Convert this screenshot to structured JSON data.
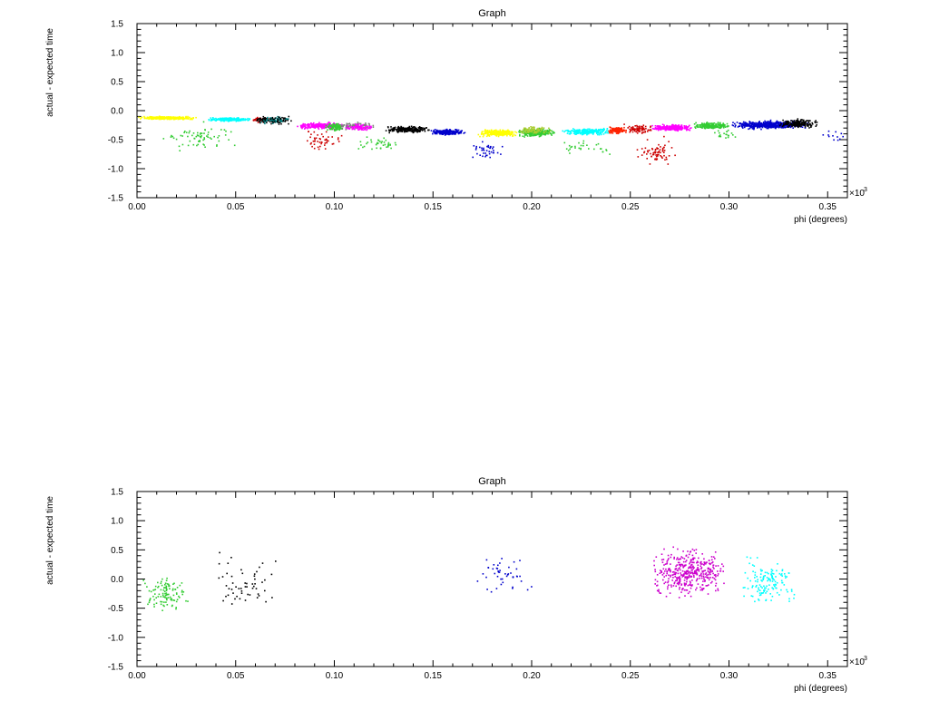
{
  "chart_data": [
    {
      "type": "scatter",
      "title": "Graph",
      "xlabel": "phi (degrees)",
      "ylabel": "actual - expected time",
      "x_multiplier": "×10",
      "x_multiplier_exponent": "3",
      "xlim": [
        0.0,
        0.36
      ],
      "ylim": [
        -1.5,
        1.5
      ],
      "x_ticks": [
        0.0,
        0.05,
        0.1,
        0.15,
        0.2,
        0.25,
        0.3,
        0.35
      ],
      "x_tick_labels": [
        "0.00",
        "0.05",
        "0.10",
        "0.15",
        "0.20",
        "0.25",
        "0.30",
        "0.35"
      ],
      "y_ticks": [
        -1.5,
        -1.0,
        -0.5,
        0.0,
        0.5,
        1.0,
        1.5
      ],
      "y_tick_labels": [
        "-1.5",
        "-1.0",
        "-0.5",
        "0.0",
        "0.5",
        "1.0",
        "1.5"
      ],
      "grid": false,
      "legend": "none",
      "clusters": [
        {
          "color": "#ffff00",
          "x": [
            0.0,
            0.03
          ],
          "y": [
            -0.15,
            -0.08
          ],
          "n": 320
        },
        {
          "color": "#33cc33",
          "x": [
            0.01,
            0.05
          ],
          "y": [
            -0.7,
            -0.15
          ],
          "n": 70
        },
        {
          "color": "#00ffff",
          "x": [
            0.036,
            0.058
          ],
          "y": [
            -0.18,
            -0.1
          ],
          "n": 240
        },
        {
          "color": "#cc0000",
          "x": [
            0.058,
            0.067
          ],
          "y": [
            -0.2,
            -0.1
          ],
          "n": 60
        },
        {
          "color": "#008080",
          "x": [
            0.06,
            0.077
          ],
          "y": [
            -0.22,
            -0.08
          ],
          "n": 90
        },
        {
          "color": "#000000",
          "x": [
            0.058,
            0.078
          ],
          "y": [
            -0.25,
            -0.05
          ],
          "n": 60
        },
        {
          "color": "#ff00ff",
          "x": [
            0.08,
            0.105
          ],
          "y": [
            -0.32,
            -0.18
          ],
          "n": 260
        },
        {
          "color": "#cc0000",
          "x": [
            0.08,
            0.105
          ],
          "y": [
            -0.7,
            -0.3
          ],
          "n": 50
        },
        {
          "color": "#33cc33",
          "x": [
            0.095,
            0.105
          ],
          "y": [
            -0.35,
            -0.18
          ],
          "n": 80
        },
        {
          "color": "#808080",
          "x": [
            0.1,
            0.12
          ],
          "y": [
            -0.32,
            -0.18
          ],
          "n": 90
        },
        {
          "color": "#ff00ff",
          "x": [
            0.105,
            0.12
          ],
          "y": [
            -0.35,
            -0.2
          ],
          "n": 80
        },
        {
          "color": "#33cc33",
          "x": [
            0.11,
            0.135
          ],
          "y": [
            -0.7,
            -0.4
          ],
          "n": 40
        },
        {
          "color": "#000000",
          "x": [
            0.125,
            0.148
          ],
          "y": [
            -0.38,
            -0.25
          ],
          "n": 250
        },
        {
          "color": "#0000cc",
          "x": [
            0.148,
            0.166
          ],
          "y": [
            -0.42,
            -0.3
          ],
          "n": 230
        },
        {
          "color": "#0000cc",
          "x": [
            0.168,
            0.185
          ],
          "y": [
            -0.9,
            -0.4
          ],
          "n": 40
        },
        {
          "color": "#ffff00",
          "x": [
            0.172,
            0.193
          ],
          "y": [
            -0.45,
            -0.3
          ],
          "n": 260
        },
        {
          "color": "#33cc33",
          "x": [
            0.192,
            0.212
          ],
          "y": [
            -0.45,
            -0.28
          ],
          "n": 240
        },
        {
          "color": "#aacc33",
          "x": [
            0.193,
            0.21
          ],
          "y": [
            -0.4,
            -0.25
          ],
          "n": 80
        },
        {
          "color": "#00ffff",
          "x": [
            0.215,
            0.24
          ],
          "y": [
            -0.42,
            -0.28
          ],
          "n": 260
        },
        {
          "color": "#33cc33",
          "x": [
            0.21,
            0.24
          ],
          "y": [
            -0.8,
            -0.45
          ],
          "n": 30
        },
        {
          "color": "#ff2200",
          "x": [
            0.238,
            0.248
          ],
          "y": [
            -0.4,
            -0.25
          ],
          "n": 110
        },
        {
          "color": "#cc0000",
          "x": [
            0.246,
            0.262
          ],
          "y": [
            -0.4,
            -0.2
          ],
          "n": 80
        },
        {
          "color": "#cc0000",
          "x": [
            0.252,
            0.275
          ],
          "y": [
            -1.0,
            -0.4
          ],
          "n": 70
        },
        {
          "color": "#ff00ff",
          "x": [
            0.26,
            0.282
          ],
          "y": [
            -0.35,
            -0.22
          ],
          "n": 260
        },
        {
          "color": "#33cc33",
          "x": [
            0.282,
            0.3
          ],
          "y": [
            -0.32,
            -0.18
          ],
          "n": 210
        },
        {
          "color": "#0000cc",
          "x": [
            0.3,
            0.34
          ],
          "y": [
            -0.32,
            -0.15
          ],
          "n": 520
        },
        {
          "color": "#000000",
          "x": [
            0.325,
            0.345
          ],
          "y": [
            -0.3,
            -0.12
          ],
          "n": 180
        },
        {
          "color": "#33cc33",
          "x": [
            0.292,
            0.305
          ],
          "y": [
            -0.5,
            -0.3
          ],
          "n": 20
        },
        {
          "color": "#0000cc",
          "x": [
            0.345,
            0.36
          ],
          "y": [
            -0.6,
            -0.3
          ],
          "n": 12
        }
      ]
    },
    {
      "type": "scatter",
      "title": "Graph",
      "xlabel": "phi (degrees)",
      "ylabel": "actual - expected time",
      "x_multiplier": "×10",
      "x_multiplier_exponent": "3",
      "xlim": [
        0.0,
        0.36
      ],
      "ylim": [
        -1.5,
        1.5
      ],
      "x_ticks": [
        0.0,
        0.05,
        0.1,
        0.15,
        0.2,
        0.25,
        0.3,
        0.35
      ],
      "x_tick_labels": [
        "0.00",
        "0.05",
        "0.10",
        "0.15",
        "0.20",
        "0.25",
        "0.30",
        "0.35"
      ],
      "y_ticks": [
        -1.5,
        -1.0,
        -0.5,
        0.0,
        0.5,
        1.0,
        1.5
      ],
      "y_tick_labels": [
        "-1.5",
        "-1.0",
        "-0.5",
        "0.0",
        "0.5",
        "1.0",
        "1.5"
      ],
      "grid": false,
      "legend": "none",
      "clusters": [
        {
          "color": "#33cc33",
          "x": [
            0.002,
            0.026
          ],
          "y": [
            -0.6,
            0.15
          ],
          "n": 110
        },
        {
          "color": "#000000",
          "x": [
            0.037,
            0.072
          ],
          "y": [
            -0.75,
            0.55
          ],
          "n": 55
        },
        {
          "color": "#0000cc",
          "x": [
            0.17,
            0.2
          ],
          "y": [
            -0.4,
            0.55
          ],
          "n": 45
        },
        {
          "color": "#cc00cc",
          "x": [
            0.26,
            0.298
          ],
          "y": [
            -0.4,
            0.6
          ],
          "n": 420
        },
        {
          "color": "#00ffff",
          "x": [
            0.305,
            0.334
          ],
          "y": [
            -0.5,
            0.45
          ],
          "n": 140
        }
      ]
    }
  ]
}
